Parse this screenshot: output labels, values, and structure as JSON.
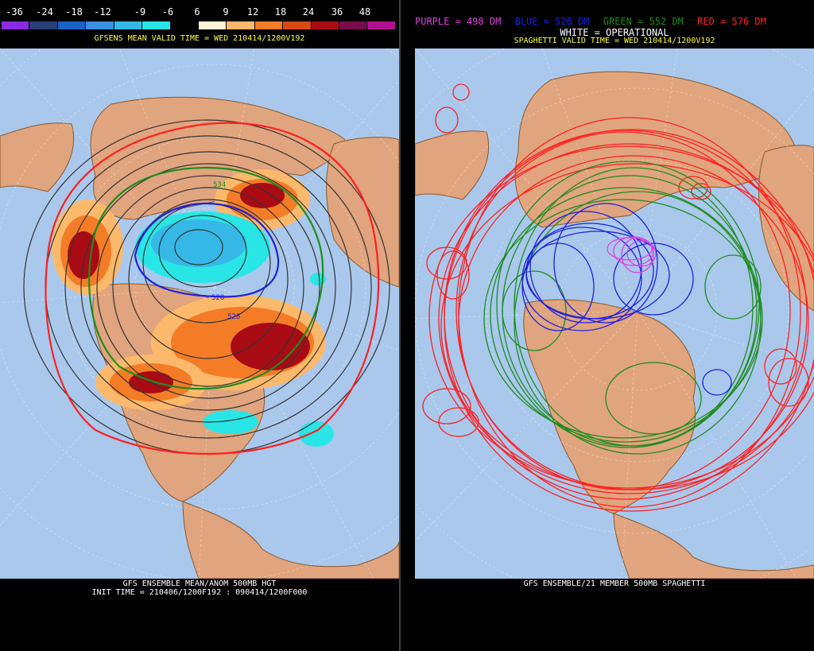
{
  "left": {
    "colorbar": {
      "labels": [
        "-36",
        "-24",
        "-18",
        "-12",
        "-9",
        "-6",
        "6",
        "9",
        "12",
        "18",
        "24",
        "36",
        "48"
      ],
      "colors": [
        "#8a2be2",
        "#27407a",
        "#1b62c6",
        "#3b8ee0",
        "#36b8e6",
        "#29e5e5",
        "#000000",
        "#fff3d6",
        "#fdb96b",
        "#f47c27",
        "#d84a10",
        "#a90b14",
        "#780b4a",
        "#b01090"
      ]
    },
    "valid_title": "GFSENS MEAN VALID TIME = WED 210414/1200V192",
    "bottom_line1": "GFS ENSEMBLE MEAN/ANOM 500MB HGT",
    "bottom_line2": "INIT TIME = 210406/1200F192 : 090414/1200F000",
    "contour_labels": [
      "534",
      "528",
      "528"
    ]
  },
  "right": {
    "legend": {
      "purple": "PURPLE = 498 DM",
      "blue": "BLUE = 528 DM",
      "green": "GREEN = 552 DM",
      "red": "RED = 576 DM"
    },
    "operational": "WHITE = OPERATIONAL",
    "valid_title": "SPAGHETTI VALID TIME = WED 210414/1200V192",
    "bottom_line1": "GFS ENSEMBLE/21 MEMBER 500MB SPAGHETTI"
  },
  "colors": {
    "ocean": "#a9c8ec",
    "land": "#e0a47e",
    "coast": "#8b5a2b",
    "purple": "#e040e0",
    "blue": "#2020e0",
    "green": "#1e8c1e",
    "red": "#ff2020",
    "yellow": "#ffff3c"
  }
}
